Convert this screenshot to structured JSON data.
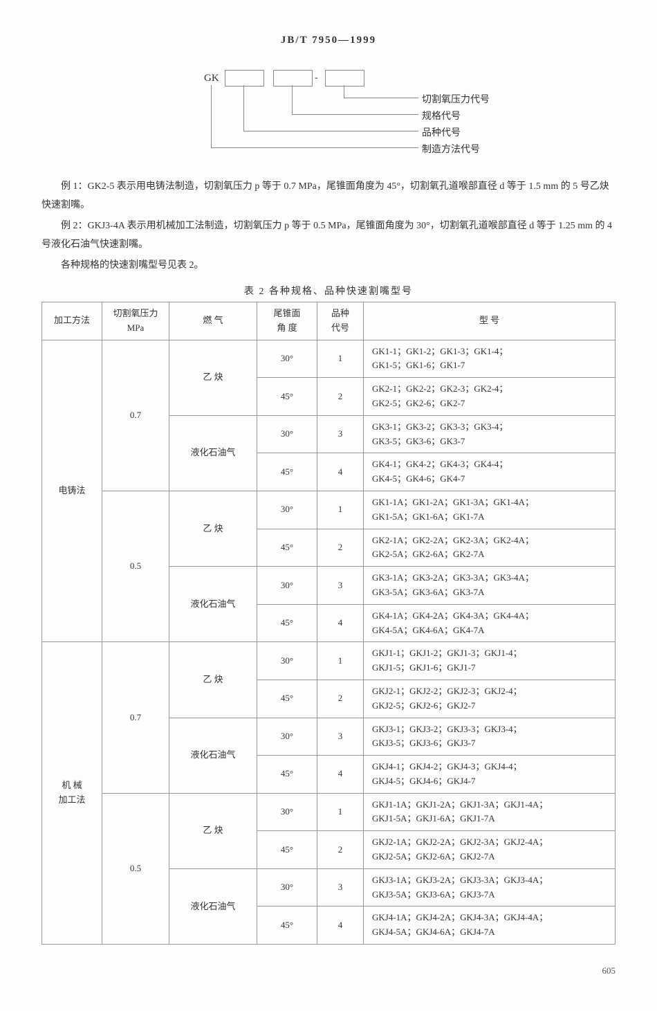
{
  "header": "JB/T 7950—1999",
  "diagram": {
    "prefix": "GK",
    "dash": "-",
    "labels": [
      "切割氧压力代号",
      "规格代号",
      "品种代号",
      "制造方法代号"
    ]
  },
  "para1": "例 1：GK2-5  表示用电铸法制造，切割氧压力 p 等于 0.7 MPa，尾锥面角度为 45°，切割氧孔道喉部直径 d 等于 1.5 mm 的 5 号乙炔快速割嘴。",
  "para2": "例 2：GKJ3-4A  表示用机械加工法制造，切割氧压力 p 等于 0.5 MPa，尾锥面角度为 30°，切割氧孔道喉部直径 d 等于 1.25 mm 的 4 号液化石油气快速割嘴。",
  "para3": "各种规格的快速割嘴型号见表 2。",
  "tableTitle": "表 2  各种规格、品种快速割嘴型号",
  "headers": {
    "method": "加工方法",
    "pressure": "切割氧压力\nMPa",
    "gas": "燃  气",
    "angle": "尾锥面\n角  度",
    "variety": "品种\n代号",
    "model": "型    号"
  },
  "gases": {
    "c2h2": "乙  炔",
    "lpg": "液化石油气"
  },
  "methods": {
    "cast": "电铸法",
    "mech": "机  械\n加工法"
  },
  "pressures": {
    "p07": "0.7",
    "p05": "0.5"
  },
  "rows": [
    {
      "angle": "30°",
      "variety": "1",
      "model": "GK1-1；GK1-2；GK1-3；GK1-4；\nGK1-5；GK1-6；GK1-7"
    },
    {
      "angle": "45°",
      "variety": "2",
      "model": "GK2-1；GK2-2；GK2-3；GK2-4；\nGK2-5；GK2-6；GK2-7"
    },
    {
      "angle": "30°",
      "variety": "3",
      "model": "GK3-1；GK3-2；GK3-3；GK3-4；\nGK3-5；GK3-6；GK3-7"
    },
    {
      "angle": "45°",
      "variety": "4",
      "model": "GK4-1；GK4-2；GK4-3；GK4-4；\nGK4-5；GK4-6；GK4-7"
    },
    {
      "angle": "30°",
      "variety": "1",
      "model": "GK1-1A；GK1-2A；GK1-3A；GK1-4A；\nGK1-5A；GK1-6A；GK1-7A"
    },
    {
      "angle": "45°",
      "variety": "2",
      "model": "GK2-1A；GK2-2A；GK2-3A；GK2-4A；\nGK2-5A；GK2-6A；GK2-7A"
    },
    {
      "angle": "30°",
      "variety": "3",
      "model": "GK3-1A；GK3-2A；GK3-3A；GK3-4A；\nGK3-5A；GK3-6A；GK3-7A"
    },
    {
      "angle": "45°",
      "variety": "4",
      "model": "GK4-1A；GK4-2A；GK4-3A；GK4-4A；\nGK4-5A；GK4-6A；GK4-7A"
    },
    {
      "angle": "30°",
      "variety": "1",
      "model": "GKJ1-1；GKJ1-2；GKJ1-3；GKJ1-4；\nGKJ1-5；GKJ1-6；GKJ1-7"
    },
    {
      "angle": "45°",
      "variety": "2",
      "model": "GKJ2-1；GKJ2-2；GKJ2-3；GKJ2-4；\nGKJ2-5；GKJ2-6；GKJ2-7"
    },
    {
      "angle": "30°",
      "variety": "3",
      "model": "GKJ3-1；GKJ3-2；GKJ3-3；GKJ3-4；\nGKJ3-5；GKJ3-6；GKJ3-7"
    },
    {
      "angle": "45°",
      "variety": "4",
      "model": "GKJ4-1；GKJ4-2；GKJ4-3；GKJ4-4；\nGKJ4-5；GKJ4-6；GKJ4-7"
    },
    {
      "angle": "30°",
      "variety": "1",
      "model": "GKJ1-1A；GKJ1-2A；GKJ1-3A；GKJ1-4A；\nGKJ1-5A；GKJ1-6A；GKJ1-7A"
    },
    {
      "angle": "45°",
      "variety": "2",
      "model": "GKJ2-1A；GKJ2-2A；GKJ2-3A；GKJ2-4A；\nGKJ2-5A；GKJ2-6A；GKJ2-7A"
    },
    {
      "angle": "30°",
      "variety": "3",
      "model": "GKJ3-1A；GKJ3-2A；GKJ3-3A；GKJ3-4A；\nGKJ3-5A；GKJ3-6A；GKJ3-7A"
    },
    {
      "angle": "45°",
      "variety": "4",
      "model": "GKJ4-1A；GKJ4-2A；GKJ4-3A；GKJ4-4A；\nGKJ4-5A；GKJ4-6A；GKJ4-7A"
    }
  ],
  "pageNum": "605"
}
